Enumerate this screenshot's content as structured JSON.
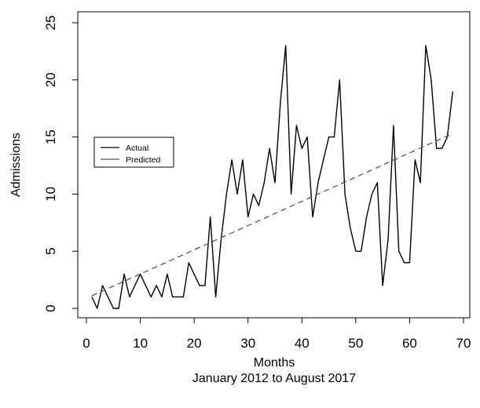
{
  "chart_data": {
    "type": "line",
    "title": "",
    "xlabel": "Months",
    "xlabel_sub": "January 2012 to August 2017",
    "ylabel": "Admissions",
    "xlim": [
      0,
      70
    ],
    "ylim": [
      0,
      25
    ],
    "x_ticks": [
      0,
      10,
      20,
      30,
      40,
      50,
      60,
      70
    ],
    "y_ticks": [
      0,
      5,
      10,
      15,
      20,
      25
    ],
    "grid": false,
    "legend_placement": "middle-left",
    "colors": {
      "actual": "#000000",
      "predicted": "#555555"
    },
    "series": [
      {
        "name": "Actual",
        "style": "solid",
        "x": [
          1,
          2,
          3,
          4,
          5,
          6,
          7,
          8,
          9,
          10,
          11,
          12,
          13,
          14,
          15,
          16,
          17,
          18,
          19,
          20,
          21,
          22,
          23,
          24,
          25,
          26,
          27,
          28,
          29,
          30,
          31,
          32,
          33,
          34,
          35,
          36,
          37,
          38,
          39,
          40,
          41,
          42,
          43,
          44,
          45,
          46,
          47,
          48,
          49,
          50,
          51,
          52,
          53,
          54,
          55,
          56,
          57,
          58,
          59,
          60,
          61,
          62,
          63,
          64,
          65,
          66,
          67,
          68
        ],
        "y": [
          1,
          0,
          2,
          1,
          0,
          0,
          3,
          1,
          2,
          3,
          2,
          1,
          2,
          1,
          3,
          1,
          1,
          1,
          4,
          3,
          2,
          2,
          8,
          1,
          6,
          10,
          13,
          10,
          13,
          8,
          10,
          9,
          11,
          14,
          11,
          18,
          23,
          10,
          16,
          14,
          15,
          8,
          11,
          13,
          15,
          15,
          20,
          10,
          7,
          5,
          5,
          8,
          10,
          11,
          2,
          6,
          16,
          5,
          4,
          4,
          13,
          11,
          23,
          20,
          14,
          14,
          15,
          19
        ]
      },
      {
        "name": "Predicted",
        "style": "dashed",
        "x": [
          1,
          68
        ],
        "y": [
          1.1,
          15.3
        ]
      }
    ]
  }
}
